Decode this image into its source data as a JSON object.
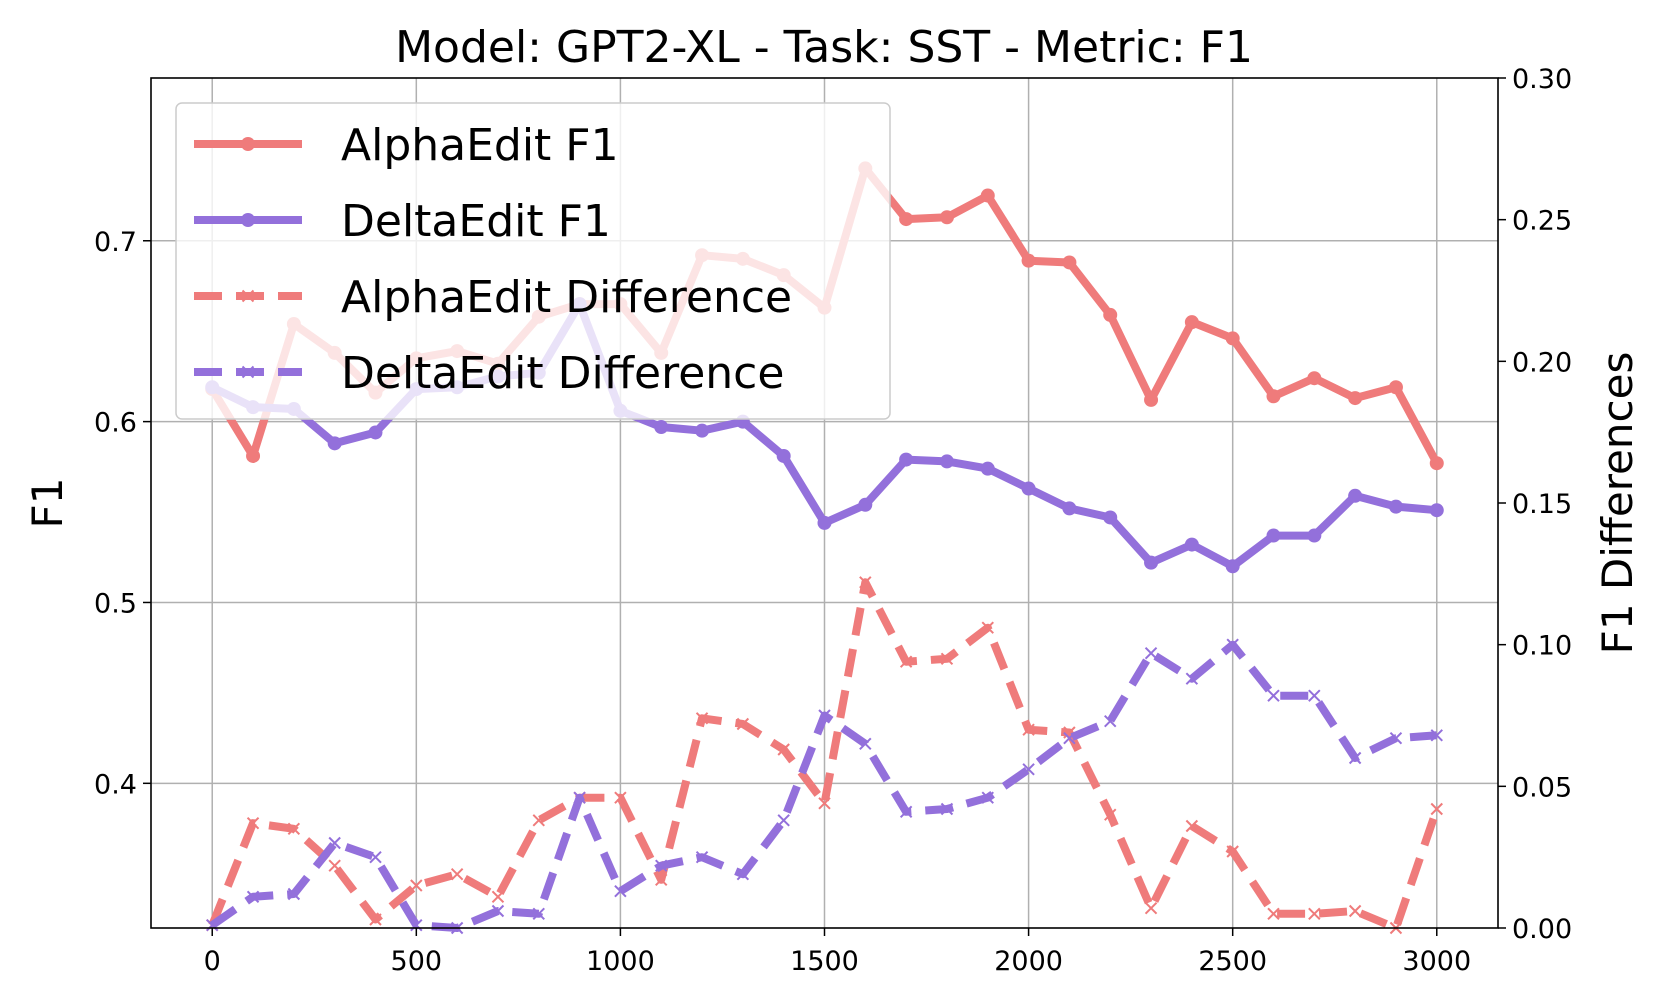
{
  "chart_data": {
    "type": "line",
    "title": "Model: GPT2-XL - Task: SST - Metric: F1",
    "xlabel": "",
    "ylabel": "F1",
    "y2label": "F1 Differences",
    "xlim": [
      -150,
      3150
    ],
    "ylim": [
      0.32,
      0.79
    ],
    "y2lim": [
      0.0,
      0.3
    ],
    "xticks": [
      0,
      500,
      1000,
      1500,
      2000,
      2500,
      3000
    ],
    "xtick_labels": [
      "0",
      "500",
      "1000",
      "1500",
      "2000",
      "2500",
      "3000"
    ],
    "yticks": [
      0.4,
      0.5,
      0.6,
      0.7
    ],
    "ytick_labels": [
      "0.4",
      "0.5",
      "0.6",
      "0.7"
    ],
    "y2ticks": [
      0.0,
      0.05,
      0.1,
      0.15,
      0.2,
      0.25,
      0.3
    ],
    "y2tick_labels": [
      "0.00",
      "0.05",
      "0.10",
      "0.15",
      "0.20",
      "0.25",
      "0.30"
    ],
    "grid": true,
    "legend_position": "top-left",
    "x": [
      0,
      100,
      200,
      300,
      400,
      500,
      600,
      700,
      800,
      900,
      1000,
      1100,
      1200,
      1300,
      1400,
      1500,
      1600,
      1700,
      1800,
      1900,
      2000,
      2100,
      2200,
      2300,
      2400,
      2500,
      2600,
      2700,
      2800,
      2900,
      3000
    ],
    "series": [
      {
        "name": "AlphaEdit F1",
        "axis": "left",
        "color": "#ef7b7b",
        "style": "solid",
        "marker": "circle",
        "values": [
          0.618,
          0.581,
          0.654,
          0.638,
          0.616,
          0.635,
          0.639,
          0.632,
          0.658,
          0.665,
          0.665,
          0.638,
          0.692,
          0.69,
          0.681,
          0.663,
          0.74,
          0.712,
          0.713,
          0.725,
          0.689,
          0.688,
          0.659,
          0.612,
          0.655,
          0.646,
          0.614,
          0.624,
          0.613,
          0.619,
          0.577
        ]
      },
      {
        "name": "DeltaEdit F1",
        "axis": "left",
        "color": "#9370db",
        "style": "solid",
        "marker": "circle",
        "values": [
          0.619,
          0.608,
          0.607,
          0.588,
          0.594,
          0.618,
          0.619,
          0.625,
          0.627,
          0.665,
          0.606,
          0.597,
          0.595,
          0.6,
          0.581,
          0.544,
          0.554,
          0.579,
          0.578,
          0.574,
          0.563,
          0.552,
          0.547,
          0.522,
          0.532,
          0.52,
          0.537,
          0.537,
          0.559,
          0.553,
          0.551
        ]
      },
      {
        "name": "AlphaEdit Difference",
        "axis": "right",
        "color": "#ef7b7b",
        "style": "dashed",
        "marker": "x",
        "values": [
          0.001,
          0.037,
          0.035,
          0.022,
          0.003,
          0.015,
          0.019,
          0.011,
          0.038,
          0.046,
          0.046,
          0.017,
          0.074,
          0.072,
          0.063,
          0.044,
          0.122,
          0.094,
          0.095,
          0.106,
          0.07,
          0.069,
          0.04,
          0.007,
          0.036,
          0.027,
          0.005,
          0.005,
          0.006,
          0.0,
          0.042
        ]
      },
      {
        "name": "DeltaEdit Difference",
        "axis": "right",
        "color": "#9370db",
        "style": "dashed",
        "marker": "x",
        "values": [
          0.001,
          0.011,
          0.012,
          0.03,
          0.025,
          0.001,
          0.0,
          0.006,
          0.005,
          0.046,
          0.013,
          0.022,
          0.025,
          0.019,
          0.038,
          0.075,
          0.065,
          0.041,
          0.042,
          0.046,
          0.056,
          0.067,
          0.073,
          0.097,
          0.088,
          0.1,
          0.082,
          0.082,
          0.06,
          0.067,
          0.068
        ]
      }
    ]
  }
}
